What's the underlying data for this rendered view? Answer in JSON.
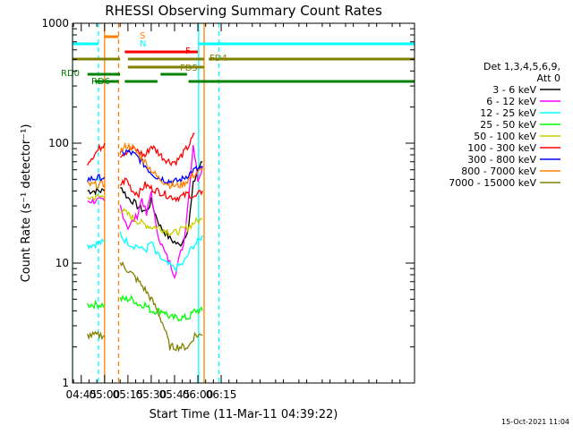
{
  "chart_data": {
    "type": "line",
    "title": "RHESSI Observing Summary Count Rates",
    "xlabel": "Start Time (11-Mar-11 04:39:22)",
    "ylabel": "Count Rate (s⁻¹ detector⁻¹)",
    "y_scale": "log",
    "ylim": [
      1,
      1000
    ],
    "y_ticks": [
      1,
      10,
      100,
      1000
    ],
    "y_tick_labels": [
      "1",
      "10",
      "100",
      "1000"
    ],
    "xlim": [
      39.37,
      259.37
    ],
    "x_ticks": [
      45,
      60,
      75,
      90,
      105,
      120,
      135
    ],
    "x_tick_labels": [
      "04:45",
      "05:00",
      "05:15",
      "05:30",
      "05:45",
      "06:00",
      "06:15"
    ],
    "legend": {
      "placement": "right",
      "header": [
        "Det 1,3,4,5,6,9,",
        "Att 0"
      ]
    },
    "footer_date": "15-Oct-2021 11:04",
    "series": [
      {
        "name": "3 - 6 keV",
        "color": "#000000",
        "segments": [
          {
            "x": [
              49,
              60
            ],
            "y": [
              40,
              40
            ]
          },
          {
            "x": [
              70,
              72,
              75,
              78,
              81,
              84,
              87,
              90,
              93,
              96,
              99,
              102,
              105,
              108,
              111,
              114,
              117,
              120,
              123
            ],
            "y": [
              45,
              40,
              35,
              33,
              30,
              28,
              27,
              33,
              25,
              20,
              18,
              16,
              15,
              14,
              16,
              20,
              45,
              60,
              70
            ]
          }
        ]
      },
      {
        "name": "6 - 12 keV",
        "color": "#ff00ff",
        "segments": [
          {
            "x": [
              49,
              60
            ],
            "y": [
              33,
              33
            ]
          },
          {
            "x": [
              70,
              72,
              75,
              78,
              81,
              84,
              87,
              90,
              93,
              96,
              99,
              102,
              105,
              108,
              111,
              114,
              117,
              120,
              123
            ],
            "y": [
              30,
              25,
              20,
              22,
              25,
              35,
              25,
              40,
              20,
              15,
              12,
              10,
              8,
              11,
              15,
              35,
              100,
              50,
              65
            ]
          }
        ]
      },
      {
        "name": "12 - 25 keV",
        "color": "#00ffff",
        "segments": [
          {
            "x": [
              49,
              60
            ],
            "y": [
              14,
              15
            ]
          },
          {
            "x": [
              70,
              72,
              75,
              78,
              81,
              84,
              87,
              90,
              93,
              96,
              99,
              102,
              105,
              108,
              111,
              114,
              117,
              120,
              123
            ],
            "y": [
              18,
              16,
              15,
              14,
              14,
              13,
              13,
              15,
              12,
              11,
              10,
              9.5,
              9,
              9.5,
              10,
              12,
              14,
              15,
              17
            ]
          }
        ]
      },
      {
        "name": "25 - 50 keV",
        "color": "#00ff00",
        "segments": [
          {
            "x": [
              49,
              60
            ],
            "y": [
              4.5,
              4.5
            ]
          },
          {
            "x": [
              70,
              74,
              78,
              82,
              86,
              90,
              94,
              98,
              102,
              106,
              110,
              114,
              118,
              123
            ],
            "y": [
              5,
              5,
              5,
              4.5,
              4.5,
              4,
              4,
              4,
              3.5,
              3.5,
              3.5,
              3.5,
              4,
              4
            ]
          }
        ]
      },
      {
        "name": "50 - 100 keV",
        "color": "#cccc00",
        "segments": [
          {
            "x": [
              49,
              60
            ],
            "y": [
              35,
              36
            ]
          },
          {
            "x": [
              70,
              74,
              78,
              82,
              86,
              90,
              94,
              98,
              102,
              106,
              110,
              114,
              118,
              123
            ],
            "y": [
              28,
              26,
              24,
              22,
              21,
              20,
              20,
              19,
              18,
              18,
              19,
              20,
              22,
              23
            ]
          }
        ]
      },
      {
        "name": "100 - 300 keV",
        "color": "#ff0000",
        "segments": [
          {
            "x": [
              49,
              60
            ],
            "y": [
              70,
              100
            ]
          },
          {
            "x": [
              70,
              74,
              78,
              82,
              86,
              90,
              94,
              98,
              102,
              106,
              110,
              114,
              118
            ],
            "y": [
              80,
              85,
              90,
              85,
              78,
              95,
              85,
              75,
              70,
              70,
              80,
              95,
              120
            ]
          },
          {
            "x": [
              70,
              74,
              78,
              82,
              86,
              90,
              94,
              98,
              102,
              106,
              110,
              114,
              118,
              123
            ],
            "y": [
              45,
              50,
              40,
              38,
              45,
              42,
              40,
              38,
              36,
              35,
              36,
              38,
              35,
              40
            ]
          }
        ]
      },
      {
        "name": "300 - 800 keV",
        "color": "#0000ff",
        "segments": [
          {
            "x": [
              49,
              60
            ],
            "y": [
              50,
              52
            ]
          },
          {
            "x": [
              70,
              74,
              78,
              82,
              86,
              90,
              94,
              98,
              102,
              106,
              110,
              114,
              118,
              123
            ],
            "y": [
              80,
              85,
              82,
              75,
              65,
              57,
              52,
              50,
              48,
              48,
              50,
              55,
              60,
              62
            ]
          }
        ]
      },
      {
        "name": "800 - 7000 keV",
        "color": "#ff8000",
        "segments": [
          {
            "x": [
              49,
              60
            ],
            "y": [
              45,
              45
            ]
          },
          {
            "x": [
              70,
              74,
              78,
              82,
              86,
              90,
              94,
              98,
              102,
              106,
              110,
              114,
              118,
              123
            ],
            "y": [
              85,
              95,
              92,
              80,
              70,
              60,
              52,
              48,
              45,
              44,
              45,
              50,
              55,
              60
            ]
          }
        ]
      },
      {
        "name": "7000 - 15000 keV",
        "color": "#808000",
        "segments": [
          {
            "x": [
              49,
              60
            ],
            "y": [
              2.5,
              2.5
            ]
          },
          {
            "x": [
              70,
              74,
              78,
              82,
              86,
              90,
              94,
              98,
              102,
              106,
              110,
              114,
              118,
              123
            ],
            "y": [
              10,
              9,
              8,
              7,
              6,
              5,
              4,
              3,
              2,
              2,
              2,
              2,
              2.5,
              2.5
            ]
          }
        ]
      }
    ],
    "state_bars": [
      {
        "label": "S",
        "color": "#ff8000",
        "segments": [
          [
            60,
            69
          ]
        ]
      },
      {
        "label": "N",
        "color": "#00ffff",
        "segments": [
          [
            39.37,
            56
          ],
          [
            120.5,
            259.37
          ]
        ]
      },
      {
        "label": "F",
        "color": "#ff0000",
        "segments": [
          [
            73,
            120
          ]
        ]
      },
      {
        "label": "FD4",
        "color": "#808000",
        "segments": [
          [
            39.37,
            70
          ],
          [
            75,
            124
          ],
          [
            127,
            259.37
          ]
        ]
      },
      {
        "label": "FD5",
        "color": "#808000",
        "segments": [
          [
            75,
            124
          ]
        ]
      },
      {
        "label": "RD0",
        "color": "#008000",
        "segments": [
          [
            49,
            70
          ],
          [
            96,
            113
          ]
        ]
      },
      {
        "label": "RD6",
        "color": "#008000",
        "segments": [
          [
            54,
            69
          ],
          [
            73,
            94
          ],
          [
            114,
            259.37
          ]
        ]
      }
    ],
    "vertical_markers": [
      {
        "x": 39.37,
        "color": "#00ffff",
        "style": "solid"
      },
      {
        "x": 56,
        "color": "#00ffff",
        "style": "dashed"
      },
      {
        "x": 60,
        "color": "#ff8000",
        "style": "solid"
      },
      {
        "x": 69,
        "color": "#ff8000",
        "style": "dashed"
      },
      {
        "x": 120.5,
        "color": "#00ffff",
        "style": "solid"
      },
      {
        "x": 124,
        "color": "#ff8000",
        "style": "solid"
      },
      {
        "x": 133.5,
        "color": "#00ffff",
        "style": "dashed"
      }
    ]
  }
}
